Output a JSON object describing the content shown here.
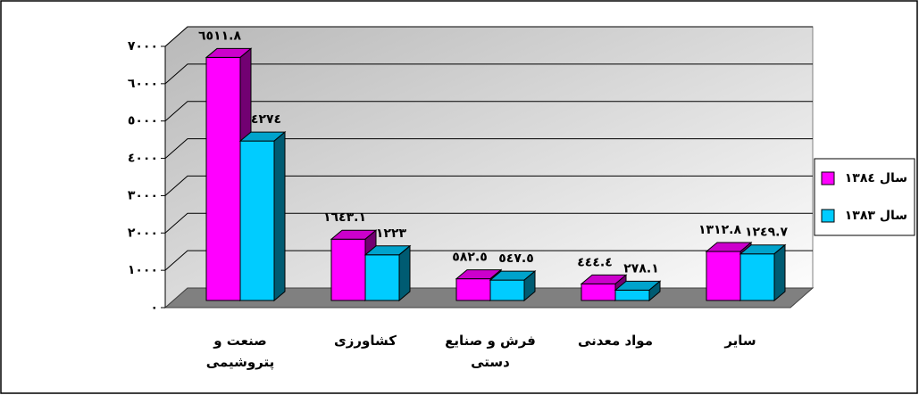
{
  "chart_data": {
    "type": "bar3d",
    "categories": [
      "صنعت و پتروشیمی",
      "کشاورزی",
      "فرش و صنایع دستی",
      "مواد معدنی",
      "سایر"
    ],
    "series": [
      {
        "name": "سال ١٣٨٤",
        "color": "#ff00ff",
        "values": [
          6511.8,
          1643.1,
          582.5,
          444.4,
          1312.8
        ],
        "value_labels": [
          "٦٥١١.٨",
          "١٦٤٣.١",
          "٥٨٢.٥",
          "٤٤٤.٤",
          "١٣١٢.٨"
        ]
      },
      {
        "name": "سال ١٣٨٣",
        "color": "#00ccff",
        "values": [
          4274,
          1223,
          547.5,
          278.1,
          1249.7
        ],
        "value_labels": [
          "٤٢٧٤",
          "١٢٢٣",
          "٥٤٧.٥",
          "٢٧٨.١",
          "١٢٤٩.٧"
        ]
      }
    ],
    "ylim": [
      0,
      7000
    ],
    "yticks": [
      {
        "value": 0,
        "label": "٠"
      },
      {
        "value": 1000,
        "label": "١٠٠٠"
      },
      {
        "value": 2000,
        "label": "٢٠٠٠"
      },
      {
        "value": 3000,
        "label": "٣٠٠٠"
      },
      {
        "value": 4000,
        "label": "٤٠٠٠"
      },
      {
        "value": 5000,
        "label": "٥٠٠٠"
      },
      {
        "value": 6000,
        "label": "٦٠٠٠"
      },
      {
        "value": 7000,
        "label": "٧٠٠٠"
      }
    ],
    "grid": true,
    "legend": "right"
  }
}
